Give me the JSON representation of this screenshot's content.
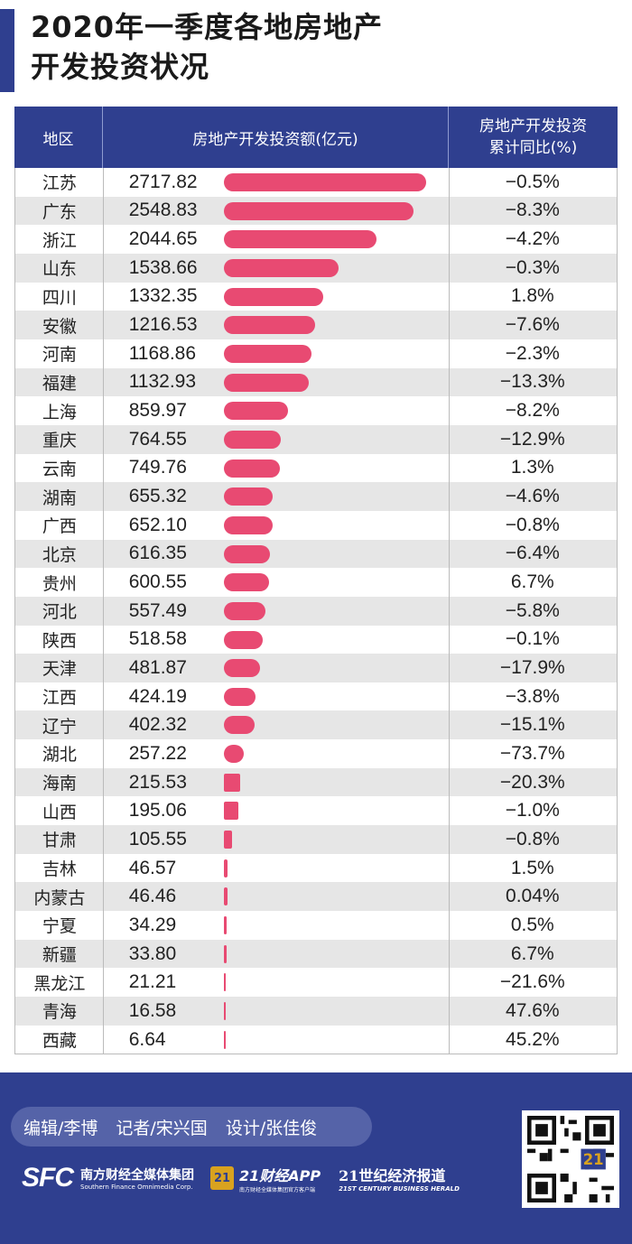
{
  "title": {
    "line1": "2020年一季度各地房地产",
    "line2": "开发投资状况"
  },
  "table": {
    "headers": {
      "region": "地区",
      "investment": "房地产开发投资额(亿元)",
      "yoy_line1": "房地产开发投资",
      "yoy_line2": "累计同比(%)"
    }
  },
  "chart_data": {
    "type": "table",
    "columns": [
      "地区",
      "房地产开发投资额(亿元)",
      "房地产开发投资累计同比(%)"
    ],
    "bar_color": "#e84a72",
    "header_color": "#2f3f8f",
    "rows": [
      {
        "region": "江苏",
        "value": 2717.82,
        "value_label": "2717.82",
        "yoy": "−0.5%"
      },
      {
        "region": "广东",
        "value": 2548.83,
        "value_label": "2548.83",
        "yoy": "−8.3%"
      },
      {
        "region": "浙江",
        "value": 2044.65,
        "value_label": "2044.65",
        "yoy": "−4.2%"
      },
      {
        "region": "山东",
        "value": 1538.66,
        "value_label": "1538.66",
        "yoy": "−0.3%"
      },
      {
        "region": "四川",
        "value": 1332.35,
        "value_label": "1332.35",
        "yoy": "1.8%"
      },
      {
        "region": "安徽",
        "value": 1216.53,
        "value_label": "1216.53",
        "yoy": "−7.6%"
      },
      {
        "region": "河南",
        "value": 1168.86,
        "value_label": "1168.86",
        "yoy": "−2.3%"
      },
      {
        "region": "福建",
        "value": 1132.93,
        "value_label": "1132.93",
        "yoy": "−13.3%"
      },
      {
        "region": "上海",
        "value": 859.97,
        "value_label": "859.97",
        "yoy": "−8.2%"
      },
      {
        "region": "重庆",
        "value": 764.55,
        "value_label": "764.55",
        "yoy": "−12.9%"
      },
      {
        "region": "云南",
        "value": 749.76,
        "value_label": "749.76",
        "yoy": "1.3%"
      },
      {
        "region": "湖南",
        "value": 655.32,
        "value_label": "655.32",
        "yoy": "−4.6%"
      },
      {
        "region": "广西",
        "value": 652.1,
        "value_label": "652.10",
        "yoy": "−0.8%"
      },
      {
        "region": "北京",
        "value": 616.35,
        "value_label": "616.35",
        "yoy": "−6.4%"
      },
      {
        "region": "贵州",
        "value": 600.55,
        "value_label": "600.55",
        "yoy": "6.7%"
      },
      {
        "region": "河北",
        "value": 557.49,
        "value_label": "557.49",
        "yoy": "−5.8%"
      },
      {
        "region": "陕西",
        "value": 518.58,
        "value_label": "518.58",
        "yoy": "−0.1%"
      },
      {
        "region": "天津",
        "value": 481.87,
        "value_label": "481.87",
        "yoy": "−17.9%"
      },
      {
        "region": "江西",
        "value": 424.19,
        "value_label": "424.19",
        "yoy": "−3.8%"
      },
      {
        "region": "辽宁",
        "value": 402.32,
        "value_label": "402.32",
        "yoy": "−15.1%"
      },
      {
        "region": "湖北",
        "value": 257.22,
        "value_label": "257.22",
        "yoy": "−73.7%"
      },
      {
        "region": "海南",
        "value": 215.53,
        "value_label": "215.53",
        "yoy": "−20.3%"
      },
      {
        "region": "山西",
        "value": 195.06,
        "value_label": "195.06",
        "yoy": "−1.0%"
      },
      {
        "region": "甘肃",
        "value": 105.55,
        "value_label": "105.55",
        "yoy": "−0.8%"
      },
      {
        "region": "吉林",
        "value": 46.57,
        "value_label": "46.57",
        "yoy": "1.5%"
      },
      {
        "region": "内蒙古",
        "value": 46.46,
        "value_label": "46.46",
        "yoy": "0.04%"
      },
      {
        "region": "宁夏",
        "value": 34.29,
        "value_label": "34.29",
        "yoy": "0.5%"
      },
      {
        "region": "新疆",
        "value": 33.8,
        "value_label": "33.80",
        "yoy": "6.7%"
      },
      {
        "region": "黑龙江",
        "value": 21.21,
        "value_label": "21.21",
        "yoy": "−21.6%"
      },
      {
        "region": "青海",
        "value": 16.58,
        "value_label": "16.58",
        "yoy": "47.6%"
      },
      {
        "region": "西藏",
        "value": 6.64,
        "value_label": "6.64",
        "yoy": "45.2%"
      }
    ]
  },
  "footer": {
    "credits": [
      "编辑/李博",
      "记者/宋兴国",
      "设计/张佳俊"
    ],
    "sfc_mark": "SFC",
    "sfc_cn": "南方财经全媒体集团",
    "sfc_en": "Southern Finance Omnimedia Corp.",
    "app_icon": "21",
    "app_cn": "21财经APP",
    "app_sub": "南方财经全媒体集团官方客户端",
    "herald_cn": "21世纪经济报道",
    "herald_en": "21ST CENTURY BUSINESS HERALD",
    "qr_badge": "21"
  }
}
